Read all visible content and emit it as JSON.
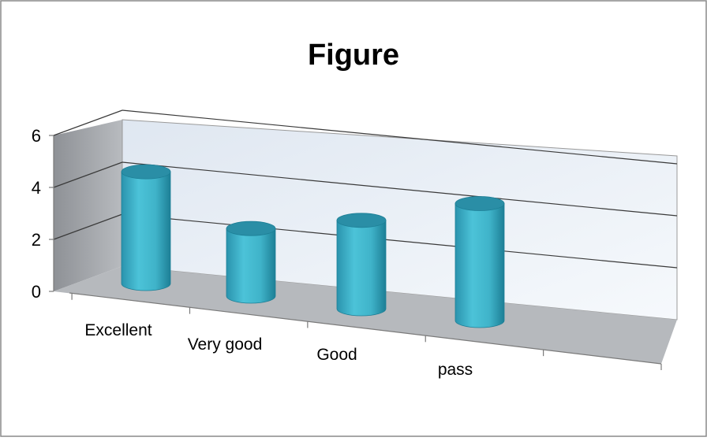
{
  "chart_data": {
    "type": "bar",
    "title": "Figure",
    "categories": [
      "Excellent",
      "Very good",
      "Good",
      "pass"
    ],
    "values": [
      4.3,
      2.6,
      3.4,
      4.5
    ],
    "xlabel": "",
    "ylabel": "",
    "ylim": [
      0,
      6
    ],
    "yticks": [
      "0",
      "2",
      "4",
      "6"
    ],
    "grid": true,
    "legend": "none",
    "colors": {
      "bar": "#3fb3c9",
      "bar_dark": "#1d7f96",
      "bar_top": "#2a8ea6",
      "wall": "#eef3f9",
      "side_wall": "#a6a9ad",
      "floor": "#b6b9bd",
      "gridline": "#3a3a3a"
    }
  }
}
